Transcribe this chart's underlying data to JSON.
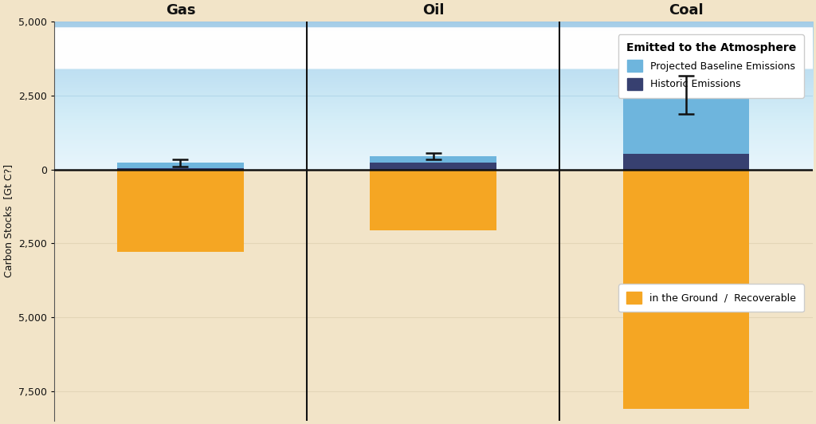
{
  "categories": [
    "Gas",
    "Oil",
    "Coal"
  ],
  "historic_emissions": [
    50,
    220,
    520
  ],
  "projected_emissions": [
    170,
    230,
    2000
  ],
  "projected_error": [
    120,
    100,
    650
  ],
  "recoverable": [
    -2800,
    -2050,
    -8100
  ],
  "colors": {
    "projected": "#6EB5DD",
    "historic": "#374070",
    "recoverable": "#F5A623",
    "sky_top": "#B8DCF0",
    "sky_mid": "#C5E5F5",
    "sky_bottom": "#D8EEF8",
    "ground_color": "#F2E4C8",
    "ground_line": "#E8D4A8",
    "divider": "#111111"
  },
  "ylim_top": 5000,
  "ylim_bottom": -8500,
  "ytick_vals": [
    5000,
    2500,
    0,
    -2500,
    -5000,
    -7500
  ],
  "ytick_labels": [
    "5,000",
    "2,500",
    "0",
    "2,500",
    "5,000",
    "7,500"
  ],
  "ylabel": "Carbon Stocks  [Gt C?]",
  "legend1_title": "Emitted to the Atmosphere",
  "legend1_items": [
    "Projected Baseline Emissions",
    "Historic Emissions"
  ],
  "legend2_item": "in the Ground  /  Recoverable",
  "bar_width": 0.5,
  "xlim": [
    -0.5,
    2.5
  ]
}
